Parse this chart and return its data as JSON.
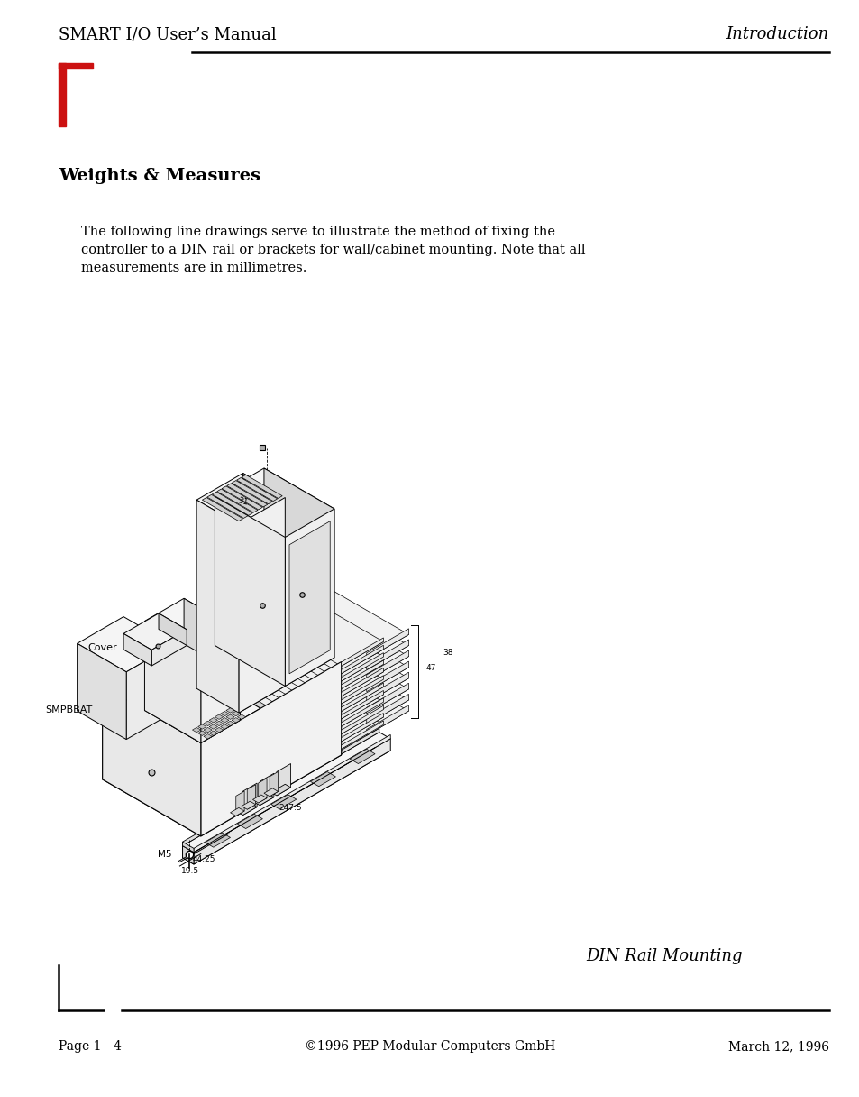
{
  "bg_color": "#ffffff",
  "header_left": "SMART I/O User’s Manual",
  "header_right": "Introduction",
  "header_font_size": 13,
  "red_color": "#cc1111",
  "section_title": "Weights & Measures",
  "body_text_line1": "The following line drawings serve to illustrate the method of fixing the",
  "body_text_line2": "controller to a DIN rail or brackets for wall/cabinet mounting. Note that all",
  "body_text_line3": "measurements are in millimetres.",
  "din_label": "DIN Rail Mounting",
  "footer_left": "Page 1 - 4",
  "footer_center": "©1996 PEP Modular Computers GmbH",
  "footer_right": "March 12, 1996"
}
